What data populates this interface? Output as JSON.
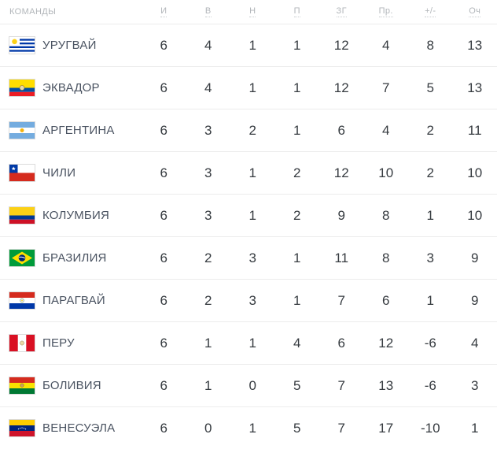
{
  "table": {
    "header": {
      "team_label": "КОМАНДЫ",
      "stat_columns": [
        "И",
        "В",
        "Н",
        "П",
        "ЗГ",
        "Пр.",
        "+/-",
        "Оч"
      ]
    },
    "rows": [
      {
        "team": "УРУГВАЙ",
        "flag": "uruguay",
        "stats": [
          "6",
          "4",
          "1",
          "1",
          "12",
          "4",
          "8",
          "13"
        ]
      },
      {
        "team": "ЭКВАДОР",
        "flag": "ecuador",
        "stats": [
          "6",
          "4",
          "1",
          "1",
          "12",
          "7",
          "5",
          "13"
        ]
      },
      {
        "team": "АРГЕНТИНА",
        "flag": "argentina",
        "stats": [
          "6",
          "3",
          "2",
          "1",
          "6",
          "4",
          "2",
          "11"
        ]
      },
      {
        "team": "ЧИЛИ",
        "flag": "chile",
        "stats": [
          "6",
          "3",
          "1",
          "2",
          "12",
          "10",
          "2",
          "10"
        ]
      },
      {
        "team": "КОЛУМБИЯ",
        "flag": "colombia",
        "stats": [
          "6",
          "3",
          "1",
          "2",
          "9",
          "8",
          "1",
          "10"
        ]
      },
      {
        "team": "БРАЗИЛИЯ",
        "flag": "brazil",
        "stats": [
          "6",
          "2",
          "3",
          "1",
          "11",
          "8",
          "3",
          "9"
        ]
      },
      {
        "team": "ПАРАГВАЙ",
        "flag": "paraguay",
        "stats": [
          "6",
          "2",
          "3",
          "1",
          "7",
          "6",
          "1",
          "9"
        ]
      },
      {
        "team": "ПЕРУ",
        "flag": "peru",
        "stats": [
          "6",
          "1",
          "1",
          "4",
          "6",
          "12",
          "-6",
          "4"
        ]
      },
      {
        "team": "БОЛИВИЯ",
        "flag": "bolivia",
        "stats": [
          "6",
          "1",
          "0",
          "5",
          "7",
          "13",
          "-6",
          "3"
        ]
      },
      {
        "team": "ВЕНЕСУЭЛА",
        "flag": "venezuela",
        "stats": [
          "6",
          "0",
          "1",
          "5",
          "7",
          "17",
          "-10",
          "1"
        ]
      }
    ]
  },
  "colors": {
    "header_text": "#b2b6ba",
    "team_text": "#4a5361",
    "stat_text": "#363b40",
    "separator": "#ececec",
    "background": "#ffffff"
  }
}
